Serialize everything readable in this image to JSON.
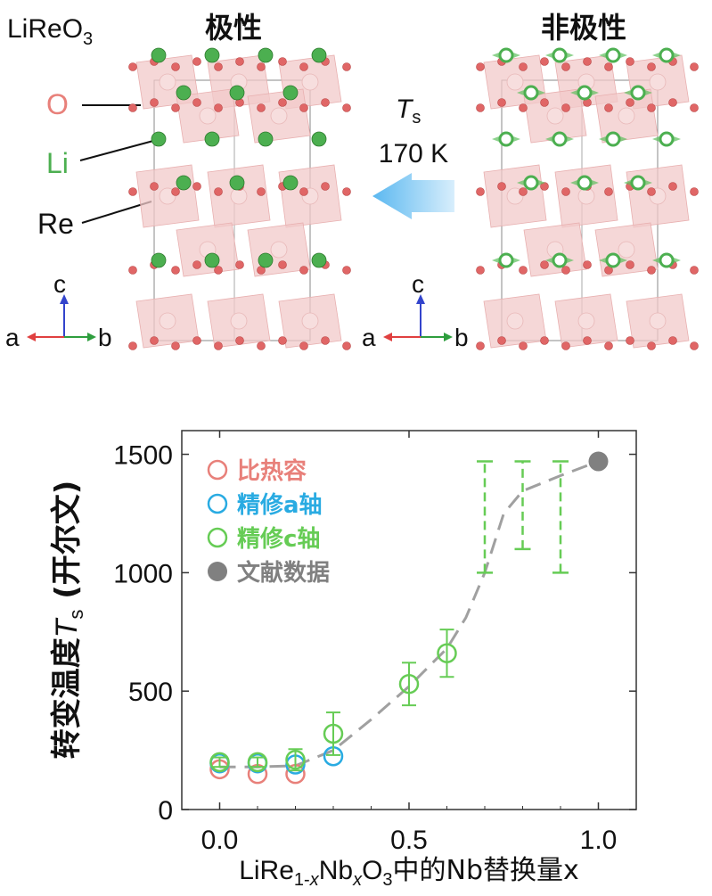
{
  "top": {
    "compound": {
      "main": "LiReO",
      "sub": "3"
    },
    "polar_label": "极性",
    "nonpolar_label": "非极性",
    "atom_labels": {
      "O": "O",
      "Li": "Li",
      "Re": "Re"
    },
    "transition": {
      "symbol": "T",
      "subscript": "s",
      "value": "170 K"
    },
    "axes": {
      "c": "c",
      "a": "a",
      "b": "b"
    },
    "colors": {
      "O": "#e06666",
      "Li": "#4caf50",
      "Re": "#f2c9c9",
      "arrow": "#8ecff5"
    }
  },
  "chart_data": {
    "type": "scatter",
    "xlabel": {
      "pre": "LiRe",
      "sub1": "1-",
      "sub1i": "x",
      "mid": "Nb",
      "sub2i": "x",
      "post1": "O",
      "sub3": "3",
      "post2": "中的Nb替换量x"
    },
    "ylabel": {
      "pre": "转变温度",
      "sym": "T",
      "sub": "s",
      "post": " (开尔文)"
    },
    "xlim": [
      -0.1,
      1.1
    ],
    "ylim": [
      0,
      1600
    ],
    "xticks": [
      0.0,
      0.5,
      1.0
    ],
    "xtick_labels": [
      "0.0",
      "0.5",
      "1.0"
    ],
    "yticks": [
      0,
      500,
      1000,
      1500
    ],
    "ytick_labels": [
      "0",
      "500",
      "1000",
      "1500"
    ],
    "legend": [
      {
        "label": "比热容",
        "color": "#e8807a",
        "marker": "open-circle"
      },
      {
        "label": "精修a轴",
        "color": "#29abe2",
        "marker": "open-circle"
      },
      {
        "label": "精修c轴",
        "color": "#66cc55",
        "marker": "open-circle"
      },
      {
        "label": "文献数据",
        "color": "#808080",
        "marker": "filled-circle"
      }
    ],
    "series": [
      {
        "name": "比热容",
        "color": "#e8807a",
        "points": [
          {
            "x": 0.0,
            "y": 170
          },
          {
            "x": 0.1,
            "y": 150
          },
          {
            "x": 0.2,
            "y": 150
          }
        ]
      },
      {
        "name": "精修a轴",
        "color": "#29abe2",
        "points": [
          {
            "x": 0.0,
            "y": 195
          },
          {
            "x": 0.1,
            "y": 195
          },
          {
            "x": 0.2,
            "y": 190
          },
          {
            "x": 0.3,
            "y": 225
          }
        ]
      },
      {
        "name": "精修c轴",
        "color": "#66cc55",
        "points": [
          {
            "x": 0.0,
            "y": 200,
            "err": 20
          },
          {
            "x": 0.1,
            "y": 200,
            "err": 20
          },
          {
            "x": 0.2,
            "y": 210,
            "err": 45
          },
          {
            "x": 0.3,
            "y": 320,
            "err": 90
          },
          {
            "x": 0.5,
            "y": 530,
            "err": 90
          },
          {
            "x": 0.6,
            "y": 660,
            "err": 100
          }
        ],
        "ranges": [
          {
            "x": 0.7,
            "low": 1000,
            "high": 1470
          },
          {
            "x": 0.8,
            "low": 1100,
            "high": 1470
          },
          {
            "x": 0.9,
            "low": 1000,
            "high": 1470
          }
        ]
      },
      {
        "name": "文献数据",
        "color": "#808080",
        "points": [
          {
            "x": 1.0,
            "y": 1470
          }
        ]
      }
    ],
    "trend": {
      "color": "#a0a0a0",
      "points": [
        [
          0.0,
          180
        ],
        [
          0.1,
          180
        ],
        [
          0.2,
          185
        ],
        [
          0.3,
          250
        ],
        [
          0.4,
          380
        ],
        [
          0.5,
          520
        ],
        [
          0.6,
          680
        ],
        [
          0.65,
          810
        ],
        [
          0.7,
          1000
        ],
        [
          0.75,
          1250
        ],
        [
          0.8,
          1345
        ],
        [
          0.9,
          1410
        ],
        [
          1.0,
          1470
        ]
      ]
    }
  }
}
